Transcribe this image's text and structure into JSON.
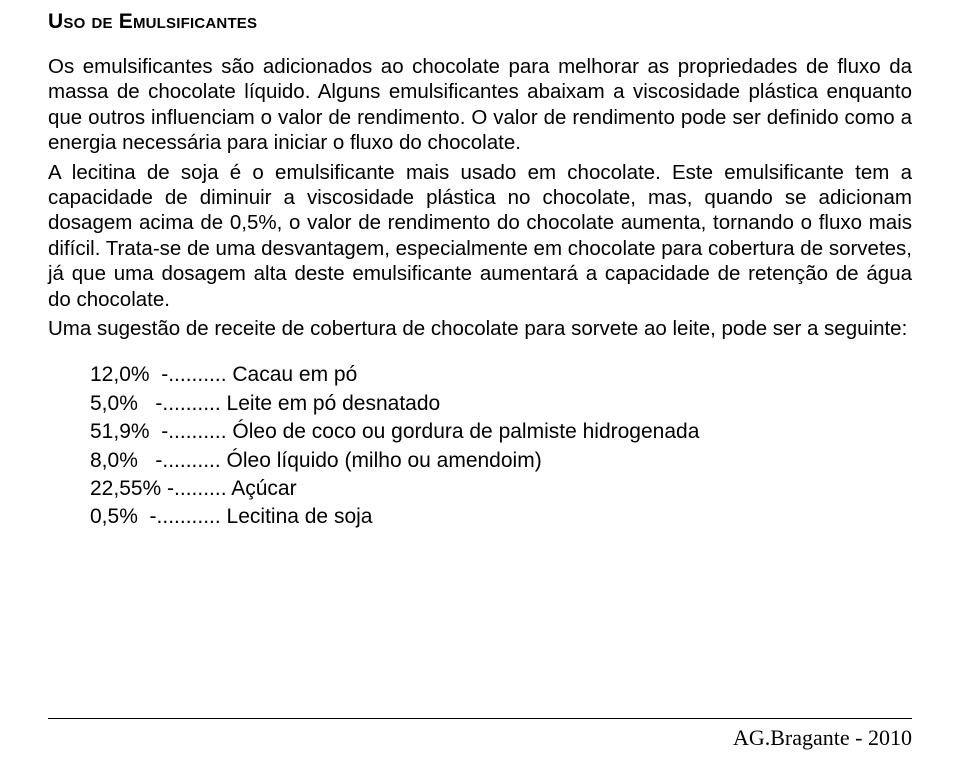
{
  "heading": "Uso de Emulsificantes",
  "paragraph1": "Os emulsificantes são adicionados ao chocolate para melhorar as propriedades de fluxo da massa de chocolate líquido. Alguns emulsificantes abaixam a viscosidade plástica enquanto que outros influenciam o valor de rendimento. O valor de rendimento pode ser definido como a energia necessária para iniciar o fluxo do chocolate.",
  "paragraph2": "A lecitina de soja é o emulsificante mais usado em chocolate. Este emulsificante tem a capacidade de diminuir a viscosidade plástica no chocolate, mas, quando se adicionam dosagem acima de 0,5%, o valor de rendimento do chocolate aumenta, tornando o fluxo mais difícil. Trata-se de uma desvantagem, especialmente em chocolate para cobertura de sorvetes, já que uma dosagem alta deste emulsificante aumentará a capacidade de retenção de água do chocolate.",
  "paragraph3": "Uma sugestão de receite de cobertura de chocolate para sorvete ao leite, pode ser a seguinte:",
  "recipe": [
    "12,0%  -.......... Cacau em pó",
    "5,0%   -.......... Leite em pó desnatado",
    "51,9%  -.......... Óleo de coco ou gordura de palmiste hidrogenada",
    "8,0%   -.......... Óleo líquido (milho ou amendoim)",
    "22,55% -......... Açúcar",
    "0,5%  -........... Lecitina de soja"
  ],
  "footer": "AG.Bragante - 2010"
}
